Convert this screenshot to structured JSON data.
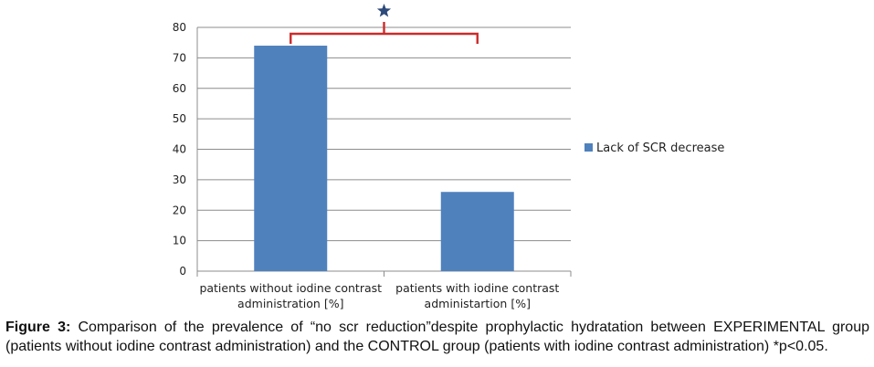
{
  "chart_data": {
    "type": "bar",
    "categories": [
      [
        "patients without iodine contrast",
        "administration [%]"
      ],
      [
        "patients with iodine contrast",
        "administartion [%]"
      ]
    ],
    "series": [
      {
        "name": "Lack of SCR decrease",
        "values": [
          74,
          26
        ],
        "color": "#4f81bd"
      }
    ],
    "ylim": [
      0,
      80
    ],
    "yticks": [
      0,
      10,
      20,
      30,
      40,
      50,
      60,
      70,
      80
    ],
    "grid": true,
    "legend_position": "right",
    "significance": {
      "from_category": 0,
      "to_category": 1,
      "marker": "star",
      "bracket_color": "#cc2a2a",
      "marker_color": "#2e4a7a"
    }
  },
  "caption": {
    "label": "Figure 3:",
    "text": " Comparison of the prevalence of “no scr reduction”despite prophylactic hydratation between EXPERIMENTAL group (patients without iodine contrast administration) and the CONTROL group (patients with iodine contrast administration) *p<0.05."
  }
}
